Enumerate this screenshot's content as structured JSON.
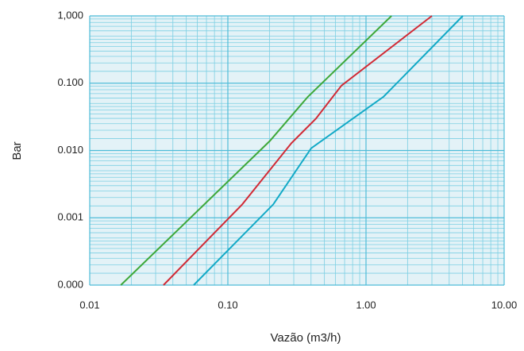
{
  "chart_data": {
    "type": "line",
    "x_label": "Vazão (m3/h)",
    "y_label": "Bar",
    "log_x": true,
    "log_y": true,
    "grid": true,
    "xlim": [
      0.01,
      10
    ],
    "ylim": [
      0.0001,
      1
    ],
    "xticks": [
      0.01,
      {
        "value": 0.1,
        "label": "0.10"
      },
      {
        "value": 1,
        "label": "1.00"
      },
      {
        "value": 10,
        "label": "10.00"
      }
    ],
    "yticks": [
      {
        "value": 0.0001,
        "label": "0.000"
      },
      0.001,
      {
        "value": 0.01,
        "label": "0.010"
      },
      {
        "value": 0.1,
        "label": "0.100"
      },
      {
        "value": 1,
        "label": "1,000"
      }
    ],
    "series": [
      {
        "color": "#3ea83a",
        "x": [
          0.0168,
          0.201,
          0.38,
          1.53
        ],
        "values": [
          0.0001,
          0.0138,
          0.063,
          1
        ]
      },
      {
        "color": "#d12a35",
        "x": [
          0.0342,
          0.127,
          0.288,
          0.433,
          0.664,
          3.0
        ],
        "values": [
          0.0001,
          0.00158,
          0.0128,
          0.0296,
          0.092,
          1
        ]
      },
      {
        "color": "#12a9c6",
        "x": [
          0.0566,
          0.213,
          0.401,
          1.34,
          5.02
        ],
        "values": [
          0.0001,
          0.00158,
          0.0108,
          0.063,
          1
        ]
      }
    ]
  }
}
